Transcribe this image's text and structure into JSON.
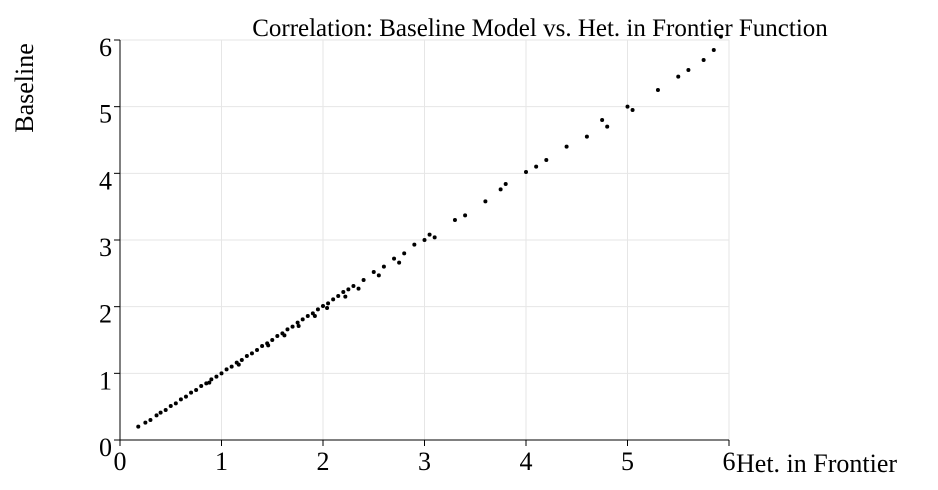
{
  "chart_data": {
    "type": "scatter",
    "title": "Correlation: Baseline Model vs. Het. in Frontier Function",
    "x_label": "Het. in Frontier",
    "y_label": "Baseline",
    "color": "#000000",
    "grid": true,
    "xlim": [
      0,
      6
    ],
    "ylim": [
      0,
      6
    ],
    "xticks": [
      0,
      1,
      2,
      3,
      4,
      5,
      6
    ],
    "yticks": [
      0,
      1,
      2,
      3,
      4,
      5,
      6
    ],
    "x": [
      0.18,
      0.25,
      0.3,
      0.36,
      0.4,
      0.45,
      0.5,
      0.55,
      0.6,
      0.65,
      0.7,
      0.75,
      0.8,
      0.85,
      0.9,
      0.95,
      1.0,
      1.05,
      1.1,
      1.15,
      1.2,
      1.25,
      1.3,
      1.35,
      1.4,
      1.45,
      1.5,
      1.55,
      1.6,
      1.65,
      1.7,
      1.75,
      1.8,
      1.85,
      1.9,
      1.95,
      2.0,
      2.05,
      2.1,
      2.15,
      2.2,
      2.25,
      2.3,
      2.4,
      2.5,
      2.6,
      2.7,
      2.8,
      2.9,
      3.0,
      3.05,
      3.1,
      3.3,
      3.4,
      3.6,
      3.75,
      3.8,
      4.0,
      4.1,
      4.2,
      4.4,
      4.6,
      4.75,
      4.8,
      5.0,
      5.05,
      5.3,
      5.5,
      5.6,
      5.75,
      5.85,
      5.92,
      0.88,
      1.17,
      1.46,
      1.76,
      2.04,
      2.22,
      1.62,
      1.92,
      2.35,
      2.55,
      2.75
    ],
    "values": [
      0.2,
      0.26,
      0.3,
      0.37,
      0.41,
      0.45,
      0.51,
      0.55,
      0.61,
      0.65,
      0.71,
      0.75,
      0.81,
      0.85,
      0.91,
      0.95,
      1.0,
      1.06,
      1.1,
      1.16,
      1.2,
      1.26,
      1.3,
      1.35,
      1.41,
      1.45,
      1.5,
      1.56,
      1.6,
      1.66,
      1.7,
      1.76,
      1.81,
      1.86,
      1.9,
      1.96,
      2.01,
      2.05,
      2.11,
      2.16,
      2.22,
      2.26,
      2.31,
      2.4,
      2.52,
      2.6,
      2.72,
      2.8,
      2.93,
      3.0,
      3.08,
      3.04,
      3.3,
      3.37,
      3.58,
      3.76,
      3.84,
      4.02,
      4.1,
      4.2,
      4.4,
      4.55,
      4.8,
      4.7,
      5.0,
      4.95,
      5.25,
      5.45,
      5.55,
      5.7,
      5.85,
      6.05,
      0.86,
      1.13,
      1.42,
      1.71,
      1.98,
      2.15,
      1.57,
      1.86,
      2.27,
      2.47,
      2.66
    ]
  }
}
